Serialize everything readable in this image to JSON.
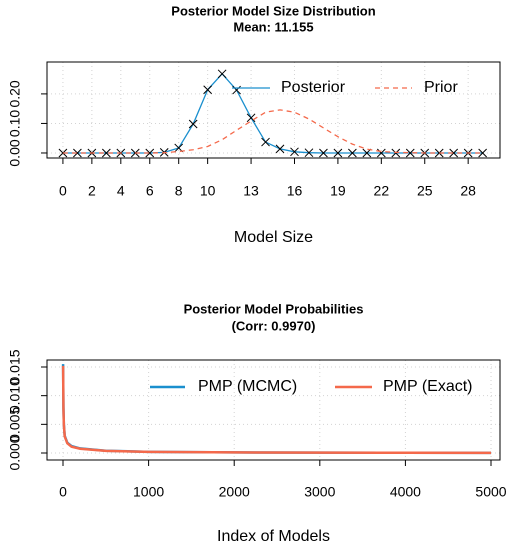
{
  "chart_data": [
    {
      "type": "line",
      "title": "Posterior Model Size Distribution",
      "subtitle": "Mean: 11.155",
      "x_label": "Model Size",
      "x": [
        0,
        1,
        2,
        3,
        4,
        5,
        6,
        7,
        8,
        9,
        10,
        11,
        12,
        13,
        14,
        15,
        16,
        17,
        18,
        19,
        20,
        21,
        22,
        23,
        24,
        25,
        26,
        27,
        28,
        29
      ],
      "series": [
        {
          "name": "Posterior",
          "color": "#1a8fce",
          "style": "solid",
          "marker": "x",
          "values": [
            0,
            0,
            0,
            0,
            0,
            0,
            0,
            0.002,
            0.017,
            0.098,
            0.214,
            0.268,
            0.213,
            0.119,
            0.037,
            0.014,
            0.004,
            0.001,
            0,
            0,
            0,
            0,
            0,
            0,
            0,
            0,
            0,
            0,
            0,
            0
          ]
        },
        {
          "name": "Prior",
          "color": "#f4694b",
          "style": "dashed",
          "values": [
            0,
            0,
            0,
            0,
            0,
            0,
            0,
            0.001,
            0.005,
            0.011,
            0.022,
            0.045,
            0.077,
            0.108,
            0.138,
            0.146,
            0.138,
            0.115,
            0.085,
            0.055,
            0.03,
            0.013,
            0.005,
            0.002,
            0.001,
            0,
            0,
            0,
            0,
            0
          ]
        }
      ],
      "xlim": [
        -1.1,
        30.2
      ],
      "xticks": [
        0,
        2,
        4,
        6,
        8,
        10,
        13,
        16,
        19,
        22,
        25,
        28
      ],
      "ylim": [
        -0.017,
        0.308
      ],
      "yticks": [
        {
          "value": 0,
          "label": "0.00"
        },
        {
          "value": 0.1,
          "label": "0.10"
        },
        {
          "value": 0.2,
          "label": "0.20"
        }
      ],
      "grid": true,
      "legend": "top-right"
    },
    {
      "type": "line",
      "title": "Posterior Model Probabilities",
      "subtitle": "(Corr: 0.9970)",
      "x_label": "Index of Models",
      "x": [
        1,
        5,
        10,
        20,
        50,
        100,
        200,
        500,
        1000,
        2000,
        3000,
        4000,
        5000
      ],
      "series": [
        {
          "name": "PMP (MCMC)",
          "color": "#1a8fce",
          "style": "solid",
          "values": [
            0.0155,
            0.008,
            0.005,
            0.003,
            0.0018,
            0.0012,
            0.0008,
            0.0004,
            0.0002,
            0.0001,
            7e-05,
            4e-05,
            2e-05
          ]
        },
        {
          "name": "PMP (Exact)",
          "color": "#f4694b",
          "style": "solid",
          "values": [
            0.0152,
            0.0078,
            0.0049,
            0.0029,
            0.0017,
            0.0011,
            0.00075,
            0.00038,
            0.00019,
            0.0001,
            6e-05,
            4e-05,
            2e-05
          ]
        }
      ],
      "xlim": [
        -187,
        5105
      ],
      "xticks": [
        0,
        1000,
        2000,
        3000,
        4000,
        5000
      ],
      "ylim": [
        -0.00122,
        0.01622
      ],
      "yticks": [
        {
          "value": 0,
          "label": "0.000"
        },
        {
          "value": 0.005,
          "label": "0.005"
        },
        {
          "value": 0.01,
          "label": "0.010"
        },
        {
          "value": 0.015,
          "label": "0.015"
        }
      ],
      "grid": true,
      "legend": "top-right"
    }
  ]
}
